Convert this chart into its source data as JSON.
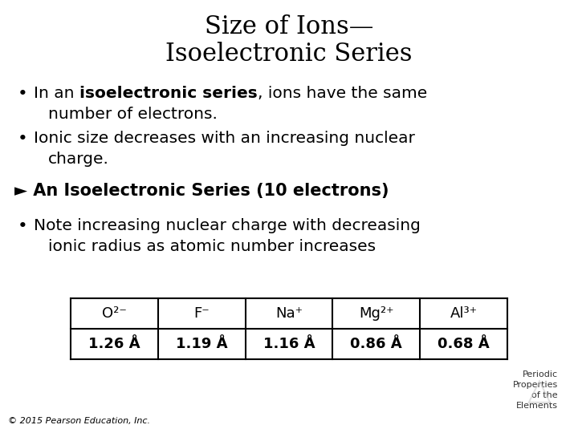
{
  "title_line1": "Size of Ions—",
  "title_line2": "Isoelectronic Series",
  "bullet1_pre": "In an ",
  "bullet1_bold": "isoelectronic series",
  "bullet1_post": ", ions have the same",
  "bullet1_line2": "number of electrons.",
  "bullet2_line1": "Ionic size decreases with an increasing nuclear",
  "bullet2_line2": "charge.",
  "arrow_line": "► An Isoelectronic Series (10 electrons)",
  "bullet3_line1": "Note increasing nuclear charge with decreasing",
  "bullet3_line2": "ionic radius as atomic number increases",
  "table_headers": [
    "O²⁻",
    "F⁻",
    "Na⁺",
    "Mg²⁺",
    "Al³⁺"
  ],
  "table_values": [
    "1.26 Å",
    "1.19 Å",
    "1.16 Å",
    "0.86 Å",
    "0.68 Å"
  ],
  "footnote": "© 2015 Pearson Education, Inc.",
  "watermark_lines": [
    "Periodic",
    "Properties",
    "of the",
    "Elements"
  ],
  "bg_color": "#ffffff",
  "text_color": "#000000",
  "title_fontsize": 22,
  "body_fontsize": 14.5,
  "arrow_fontsize": 15,
  "table_header_fontsize": 13,
  "table_val_fontsize": 13,
  "footnote_fontsize": 8,
  "watermark_fontsize": 8
}
